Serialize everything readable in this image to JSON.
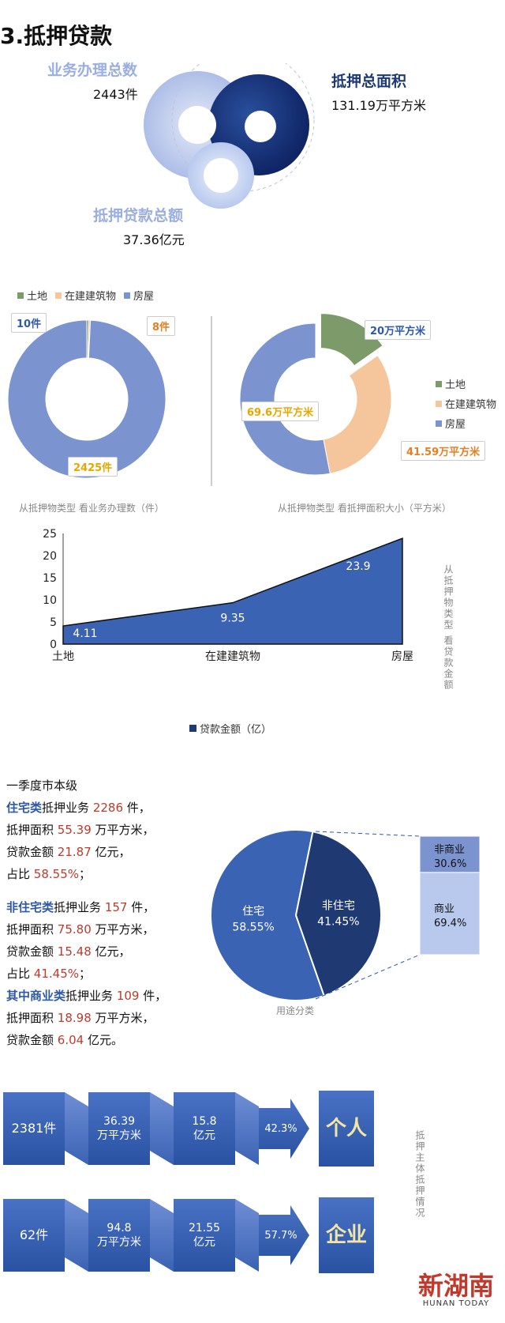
{
  "section_title": "3.抵押贷款",
  "summary": {
    "business_label": "业务办理总数",
    "business_value": "2443件",
    "area_label": "抵押总面积",
    "area_value": "131.19万平方米",
    "loan_label": "抵押贷款总额",
    "loan_value": "37.36亿元"
  },
  "legend": {
    "land": "土地",
    "construction": "在建建筑物",
    "house": "房屋"
  },
  "colors": {
    "land": "#7d9a6a",
    "construction": "#f5c59b",
    "house": "#7b93cf",
    "navy": "#1f3a73",
    "blue": "#3b63b3"
  },
  "chart_data": [
    {
      "type": "pie",
      "caption": "从抵押物类型 看业务办理数（件）",
      "categories": [
        "土地",
        "在建建筑物",
        "房屋"
      ],
      "values": [
        10,
        8,
        2425
      ],
      "labels": [
        "10件",
        "8件",
        "2425件"
      ]
    },
    {
      "type": "pie",
      "caption": "从抵押物类型 看抵押面积大小（平方米）",
      "categories": [
        "土地",
        "在建建筑物",
        "房屋"
      ],
      "values": [
        20,
        41.59,
        69.6
      ],
      "labels": [
        "20万平方米",
        "41.59万平方米",
        "69.6万平方米"
      ]
    },
    {
      "type": "area",
      "categories": [
        "土地",
        "在建建筑物",
        "房屋"
      ],
      "values": [
        4.11,
        9.35,
        23.9
      ],
      "ylim": [
        0,
        25
      ],
      "yticks": [
        0,
        5,
        10,
        15,
        20,
        25
      ],
      "series": [
        {
          "name": "贷款金额（亿）",
          "values": [
            4.11,
            9.35,
            23.9
          ]
        }
      ],
      "side_label": "从抵押物类型 看贷款金额"
    },
    {
      "type": "pie",
      "caption": "用途分类",
      "categories": [
        "住宅",
        "非住宅"
      ],
      "values": [
        58.55,
        41.45
      ],
      "labels": [
        "住宅\n58.55%",
        "非住宅\n41.45%"
      ],
      "breakdown": [
        {
          "label": "非商业",
          "value": "30.6%",
          "percent": 30.6
        },
        {
          "label": "商业",
          "value": "69.4%",
          "percent": 69.4
        }
      ]
    }
  ],
  "stats": {
    "heading": "一季度市本级",
    "res_name": "住宅类",
    "res_count": "2286",
    "res_area": "55.39",
    "res_loan": "21.87",
    "res_share": "58.55%",
    "nonres_name": "非住宅类",
    "nonres_count": "157",
    "nonres_area": "75.80",
    "nonres_loan": "15.48",
    "nonres_share": "41.45%",
    "com_name": "其中商业类",
    "com_count": "109",
    "com_area": "18.98",
    "com_loan": "6.04",
    "t_business": "抵押业务",
    "t_piece": "件，",
    "t_area": "抵押面积",
    "t_area_unit": "万平方米，",
    "t_loan": "贷款金额",
    "t_loan_unit": "亿元，",
    "t_loan_unit_end": "亿元。",
    "t_share": "占比",
    "t_end": "；"
  },
  "subjects": {
    "side_label": "抵押主体抵押情况",
    "rows": [
      {
        "count": "2381件",
        "area": "36.39\n万平方米",
        "loan": "15.8\n亿元",
        "share": "42.3%",
        "name": "个人"
      },
      {
        "count": "62件",
        "area": "94.8\n万平方米",
        "loan": "21.55\n亿元",
        "share": "57.7%",
        "name": "企业"
      }
    ]
  },
  "logo": {
    "name": "新湖南",
    "sub": "HUNAN TODAY"
  }
}
